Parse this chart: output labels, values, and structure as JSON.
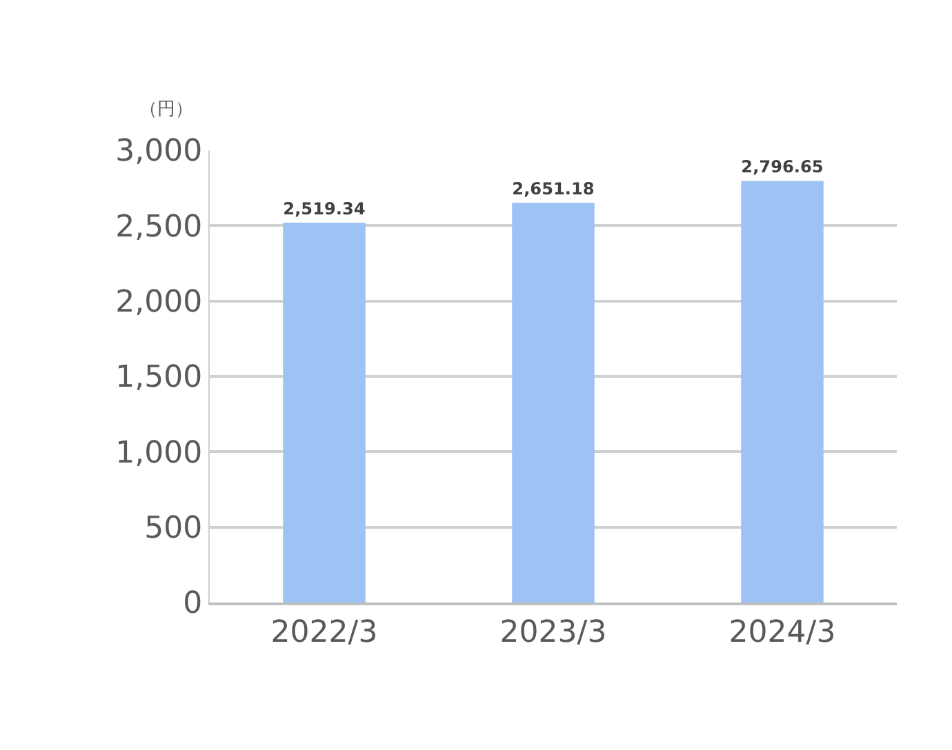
{
  "chart_data": {
    "type": "bar",
    "ylabel": "（円）",
    "categories": [
      "2022/3",
      "2023/3",
      "2024/3"
    ],
    "values": [
      2519.34,
      2651.18,
      2796.65
    ],
    "color": "#9dc3f5",
    "ylim": [
      0,
      3000
    ],
    "yticks": [
      0,
      {
        "value": 500,
        "label": "500"
      },
      {
        "value": 1000,
        "label": "1,000"
      },
      {
        "value": 1500,
        "label": "1,500"
      },
      {
        "value": 2000,
        "label": "2,000"
      },
      {
        "value": 2500,
        "label": "2,500"
      },
      {
        "value": 3000,
        "label": "3,000"
      }
    ],
    "grid": "y",
    "data_labels": true,
    "value_labels": [
      "2,519.34",
      "2,651.18",
      "2,796.65"
    ]
  }
}
